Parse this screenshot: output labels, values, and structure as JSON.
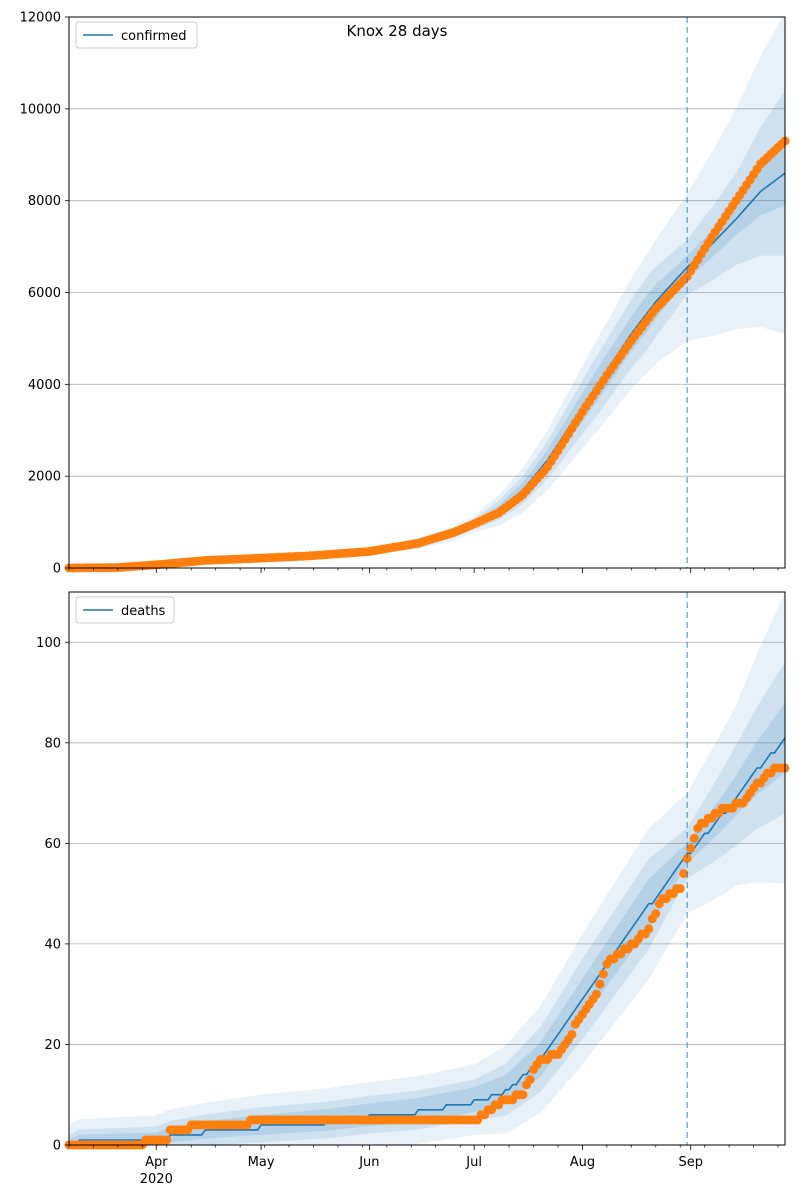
{
  "figure": {
    "title": "Knox 28 days"
  },
  "chart_data": [
    {
      "type": "line",
      "title": "Knox 28 days",
      "series_label": "confirmed",
      "x_range": [
        "2020-03-07",
        "2020-09-28"
      ],
      "ylim": [
        0,
        12000
      ],
      "yticks": [
        0,
        2000,
        4000,
        6000,
        8000,
        10000,
        12000
      ],
      "grid": "y",
      "legend": "top-left",
      "vline_date": "2020-08-31",
      "colors": {
        "model": "#1f77b4",
        "observed": "#ff7f0e",
        "band": "#1f77b4"
      },
      "model_series": [
        {
          "date": "2020-03-07",
          "value": 0
        },
        {
          "date": "2020-03-21",
          "value": 10
        },
        {
          "date": "2020-04-01",
          "value": 80
        },
        {
          "date": "2020-04-15",
          "value": 170
        },
        {
          "date": "2020-05-01",
          "value": 220
        },
        {
          "date": "2020-05-15",
          "value": 270
        },
        {
          "date": "2020-06-01",
          "value": 370
        },
        {
          "date": "2020-06-15",
          "value": 530
        },
        {
          "date": "2020-06-25",
          "value": 750
        },
        {
          "date": "2020-07-01",
          "value": 960
        },
        {
          "date": "2020-07-08",
          "value": 1250
        },
        {
          "date": "2020-07-15",
          "value": 1700
        },
        {
          "date": "2020-07-22",
          "value": 2350
        },
        {
          "date": "2020-08-01",
          "value": 3500
        },
        {
          "date": "2020-08-08",
          "value": 4300
        },
        {
          "date": "2020-08-15",
          "value": 5100
        },
        {
          "date": "2020-08-22",
          "value": 5800
        },
        {
          "date": "2020-08-31",
          "value": 6550
        },
        {
          "date": "2020-09-07",
          "value": 7050
        },
        {
          "date": "2020-09-14",
          "value": 7600
        },
        {
          "date": "2020-09-21",
          "value": 8200
        },
        {
          "date": "2020-09-28",
          "value": 8600
        }
      ],
      "band_halfwidths": [
        {
          "date": "2020-03-07",
          "inner": 0,
          "mid": 0,
          "outer": 0
        },
        {
          "date": "2020-06-01",
          "inner": 20,
          "mid": 35,
          "outer": 60
        },
        {
          "date": "2020-07-01",
          "inner": 60,
          "mid": 110,
          "outer": 180
        },
        {
          "date": "2020-07-20",
          "inner": 200,
          "mid": 380,
          "outer": 600
        },
        {
          "date": "2020-08-05",
          "inner": 350,
          "mid": 650,
          "outer": 1000
        },
        {
          "date": "2020-08-20",
          "inner": 400,
          "mid": 800,
          "outer": 1300
        },
        {
          "date": "2020-08-31",
          "inner": 250,
          "mid": 600,
          "outer": 1600
        },
        {
          "date": "2020-09-14",
          "inner": 350,
          "mid": 1000,
          "outer": 2400
        },
        {
          "date": "2020-09-28",
          "inner": 700,
          "mid": 1800,
          "outer": 3500
        }
      ],
      "observed_series": [
        {
          "date": "2020-03-07",
          "value": 0
        },
        {
          "date": "2020-03-21",
          "value": 10
        },
        {
          "date": "2020-04-01",
          "value": 70
        },
        {
          "date": "2020-04-15",
          "value": 165
        },
        {
          "date": "2020-05-01",
          "value": 215
        },
        {
          "date": "2020-05-15",
          "value": 265
        },
        {
          "date": "2020-06-01",
          "value": 360
        },
        {
          "date": "2020-06-15",
          "value": 540
        },
        {
          "date": "2020-06-25",
          "value": 770
        },
        {
          "date": "2020-07-01",
          "value": 960
        },
        {
          "date": "2020-07-08",
          "value": 1200
        },
        {
          "date": "2020-07-15",
          "value": 1600
        },
        {
          "date": "2020-07-22",
          "value": 2200
        },
        {
          "date": "2020-08-01",
          "value": 3400
        },
        {
          "date": "2020-08-08",
          "value": 4200
        },
        {
          "date": "2020-08-15",
          "value": 4950
        },
        {
          "date": "2020-08-22",
          "value": 5650
        },
        {
          "date": "2020-08-31",
          "value": 6350
        },
        {
          "date": "2020-09-07",
          "value": 7200
        },
        {
          "date": "2020-09-14",
          "value": 8000
        },
        {
          "date": "2020-09-21",
          "value": 8800
        },
        {
          "date": "2020-09-28",
          "value": 9300
        }
      ]
    },
    {
      "type": "line",
      "series_label": "deaths",
      "x_range": [
        "2020-03-07",
        "2020-09-28"
      ],
      "ylim": [
        0,
        110
      ],
      "yticks": [
        0,
        20,
        40,
        60,
        80,
        100
      ],
      "grid": "y",
      "legend": "top-left",
      "vline_date": "2020-08-31",
      "colors": {
        "model": "#1f77b4",
        "observed": "#ff7f0e",
        "band": "#1f77b4"
      },
      "xtick_labels": [
        {
          "date": "2020-04-01",
          "label": "Apr",
          "sublabel": "2020"
        },
        {
          "date": "2020-05-01",
          "label": "May"
        },
        {
          "date": "2020-06-01",
          "label": "Jun"
        },
        {
          "date": "2020-07-01",
          "label": "Jul"
        },
        {
          "date": "2020-08-01",
          "label": "Aug"
        },
        {
          "date": "2020-09-01",
          "label": "Sep"
        }
      ],
      "model_series": [
        {
          "date": "2020-03-07",
          "value": 0
        },
        {
          "date": "2020-03-10",
          "value": 1
        },
        {
          "date": "2020-04-01",
          "value": 1
        },
        {
          "date": "2020-04-05",
          "value": 2
        },
        {
          "date": "2020-04-15",
          "value": 3
        },
        {
          "date": "2020-05-01",
          "value": 4
        },
        {
          "date": "2020-05-20",
          "value": 5
        },
        {
          "date": "2020-06-01",
          "value": 6
        },
        {
          "date": "2020-06-15",
          "value": 7
        },
        {
          "date": "2020-07-01",
          "value": 9
        },
        {
          "date": "2020-07-10",
          "value": 11
        },
        {
          "date": "2020-07-20",
          "value": 17
        },
        {
          "date": "2020-08-01",
          "value": 29
        },
        {
          "date": "2020-08-10",
          "value": 38
        },
        {
          "date": "2020-08-20",
          "value": 48
        },
        {
          "date": "2020-08-31",
          "value": 58
        },
        {
          "date": "2020-09-10",
          "value": 66
        },
        {
          "date": "2020-09-20",
          "value": 75
        },
        {
          "date": "2020-09-28",
          "value": 81
        }
      ],
      "band_halfwidths": [
        {
          "date": "2020-03-07",
          "inner": 1,
          "mid": 2,
          "outer": 4
        },
        {
          "date": "2020-05-01",
          "inner": 2,
          "mid": 3.5,
          "outer": 6
        },
        {
          "date": "2020-07-01",
          "inner": 2.5,
          "mid": 4,
          "outer": 7
        },
        {
          "date": "2020-08-01",
          "inner": 4,
          "mid": 8,
          "outer": 13
        },
        {
          "date": "2020-08-20",
          "inner": 5,
          "mid": 9,
          "outer": 15
        },
        {
          "date": "2020-08-31",
          "inner": 2,
          "mid": 5,
          "outer": 12
        },
        {
          "date": "2020-09-14",
          "inner": 4,
          "mid": 10,
          "outer": 18
        },
        {
          "date": "2020-09-28",
          "inner": 7,
          "mid": 15,
          "outer": 29
        }
      ],
      "observed_series": [
        {
          "date": "2020-03-07",
          "value": 0
        },
        {
          "date": "2020-03-28",
          "value": 0
        },
        {
          "date": "2020-03-29",
          "value": 1
        },
        {
          "date": "2020-04-04",
          "value": 1
        },
        {
          "date": "2020-04-05",
          "value": 3
        },
        {
          "date": "2020-04-10",
          "value": 3
        },
        {
          "date": "2020-04-12",
          "value": 4
        },
        {
          "date": "2020-04-27",
          "value": 4
        },
        {
          "date": "2020-04-28",
          "value": 5
        },
        {
          "date": "2020-07-02",
          "value": 5
        },
        {
          "date": "2020-07-05",
          "value": 7
        },
        {
          "date": "2020-07-08",
          "value": 8
        },
        {
          "date": "2020-07-10",
          "value": 9
        },
        {
          "date": "2020-07-15",
          "value": 10
        },
        {
          "date": "2020-07-18",
          "value": 15
        },
        {
          "date": "2020-07-20",
          "value": 17
        },
        {
          "date": "2020-07-25",
          "value": 18
        },
        {
          "date": "2020-07-28",
          "value": 21
        },
        {
          "date": "2020-08-01",
          "value": 26
        },
        {
          "date": "2020-08-05",
          "value": 30
        },
        {
          "date": "2020-08-08",
          "value": 36
        },
        {
          "date": "2020-08-12",
          "value": 38
        },
        {
          "date": "2020-08-16",
          "value": 40
        },
        {
          "date": "2020-08-20",
          "value": 43
        },
        {
          "date": "2020-08-23",
          "value": 48
        },
        {
          "date": "2020-08-26",
          "value": 50
        },
        {
          "date": "2020-08-29",
          "value": 51
        },
        {
          "date": "2020-08-31",
          "value": 57
        },
        {
          "date": "2020-09-03",
          "value": 63
        },
        {
          "date": "2020-09-07",
          "value": 65
        },
        {
          "date": "2020-09-11",
          "value": 67
        },
        {
          "date": "2020-09-16",
          "value": 68
        },
        {
          "date": "2020-09-19",
          "value": 71
        },
        {
          "date": "2020-09-22",
          "value": 73
        },
        {
          "date": "2020-09-25",
          "value": 75
        },
        {
          "date": "2020-09-28",
          "value": 75
        }
      ]
    }
  ]
}
